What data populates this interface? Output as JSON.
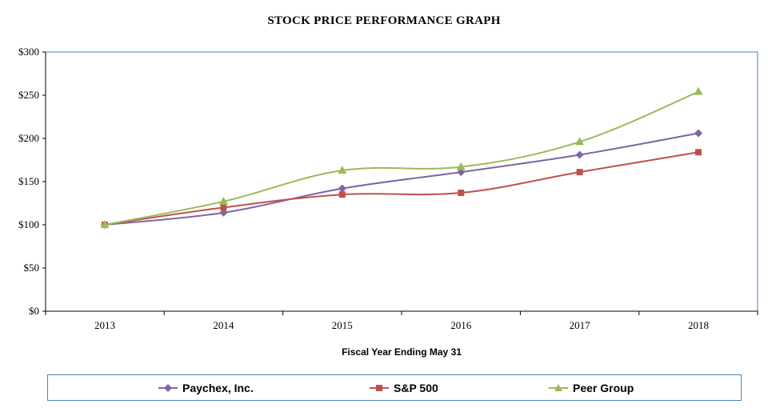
{
  "chart_data": {
    "type": "line",
    "title": "STOCK PRICE PERFORMANCE GRAPH",
    "xlabel": "Fiscal Year Ending May 31",
    "ylabel": "",
    "categories": [
      "2013",
      "2014",
      "2015",
      "2016",
      "2017",
      "2018"
    ],
    "ylim": [
      0,
      300
    ],
    "yticks": [
      0,
      50,
      100,
      150,
      200,
      250,
      300
    ],
    "ytick_labels": [
      "$0",
      "$50",
      "$100",
      "$150",
      "$200",
      "$250",
      "$300"
    ],
    "grid": false,
    "legend_position": "bottom",
    "series": [
      {
        "name": "Paychex, Inc.",
        "color": "#7f64a2",
        "marker": "diamond",
        "values": [
          100,
          114,
          142,
          161,
          181,
          206
        ]
      },
      {
        "name": "S&P 500",
        "color": "#c0504d",
        "marker": "square",
        "values": [
          100,
          120,
          135,
          137,
          161,
          184
        ]
      },
      {
        "name": "Peer Group",
        "color": "#9bbb59",
        "marker": "triangle",
        "values": [
          100,
          127,
          163,
          167,
          196,
          254
        ]
      }
    ]
  }
}
